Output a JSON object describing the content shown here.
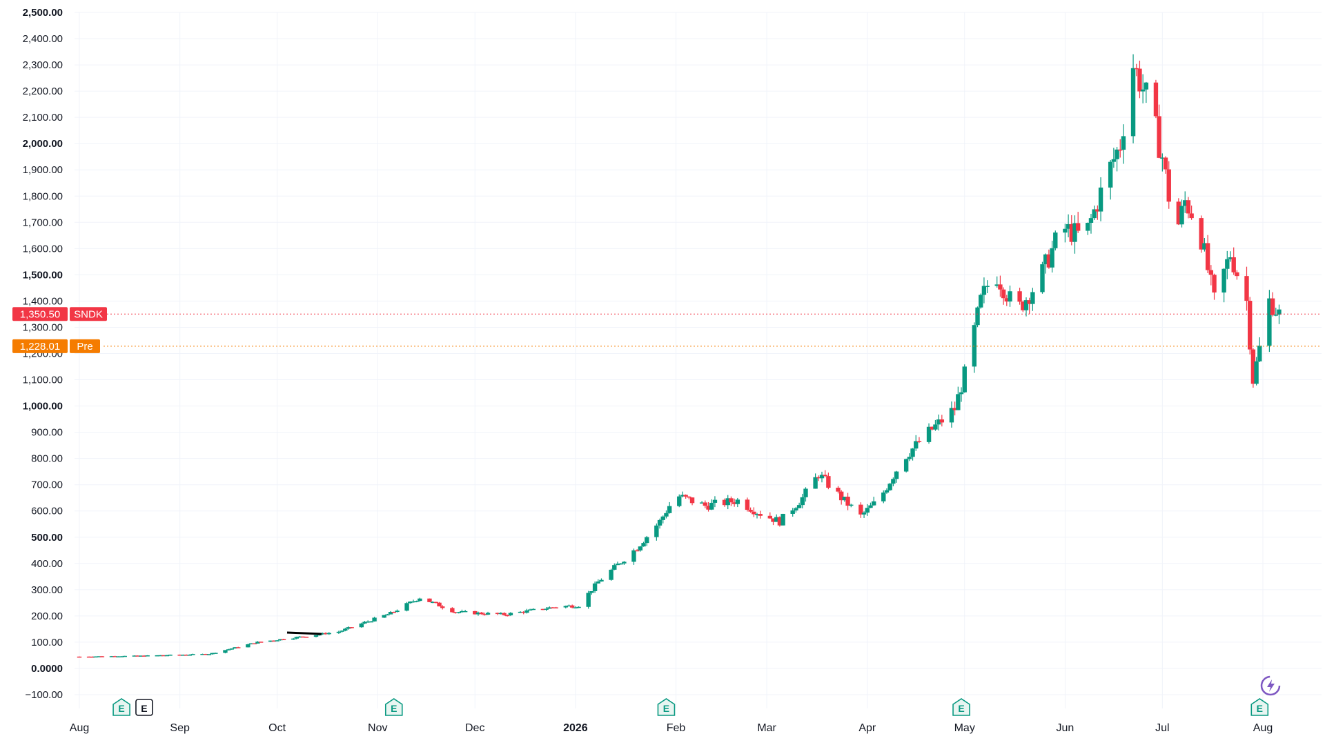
{
  "chart_data": {
    "type": "candlestick",
    "symbol": "SNDK",
    "ylim": [
      -100,
      2500
    ],
    "y_ticks": [
      "2,500.00",
      "2,400.00",
      "2,300.00",
      "2,200.00",
      "2,100.00",
      "2,000.00",
      "1,900.00",
      "1,800.00",
      "1,700.00",
      "1,600.00",
      "1,500.00",
      "1,400.00",
      "1,300.00",
      "1,200.00",
      "1,100.00",
      "1,000.00",
      "900.00",
      "800.00",
      "700.00",
      "600.00",
      "500.00",
      "400.00",
      "300.00",
      "200.00",
      "100.00",
      "0.0000",
      "−100.00"
    ],
    "y_tick_values": [
      2500,
      2400,
      2300,
      2200,
      2100,
      2000,
      1900,
      1800,
      1700,
      1600,
      1500,
      1400,
      1300,
      1200,
      1100,
      1000,
      900,
      800,
      700,
      600,
      500,
      400,
      300,
      200,
      100,
      0,
      -100
    ],
    "y_bold_values": [
      2500,
      2000,
      1500,
      1000,
      500,
      0
    ],
    "x_ticks": [
      "Aug",
      "Sep",
      "Oct",
      "Nov",
      "Dec",
      "2026",
      "Feb",
      "Mar",
      "Apr",
      "May",
      "Jun",
      "Jul",
      "Aug"
    ],
    "x_tick_dates": [
      "2025-08-01",
      "2025-09-01",
      "2025-10-01",
      "2025-11-01",
      "2025-12-01",
      "2026-01-01",
      "2026-02-01",
      "2026-03-01",
      "2026-04-01",
      "2026-05-01",
      "2026-06-01",
      "2026-07-01",
      "2026-08-01"
    ],
    "x_bold": [
      "2026"
    ],
    "price_tags": [
      {
        "value": 1350.5,
        "label": "1,350.50",
        "name": "SNDK",
        "color": "#f23645"
      },
      {
        "value": 1228.01,
        "label": "1,228.01",
        "name": "Pre",
        "color": "#f57c00"
      }
    ],
    "earnings_markers": [
      {
        "date": "2025-08-14",
        "label": "E",
        "style": "green"
      },
      {
        "date": "2025-08-21",
        "label": "E",
        "style": "dark"
      },
      {
        "date": "2025-11-06",
        "label": "E",
        "style": "green"
      },
      {
        "date": "2026-01-29",
        "label": "E",
        "style": "green"
      },
      {
        "date": "2026-04-30",
        "label": "E",
        "style": "green"
      },
      {
        "date": "2026-07-31",
        "label": "E",
        "style": "green"
      }
    ],
    "anchors": [
      [
        "2025-08-01",
        45
      ],
      [
        "2025-08-20",
        48
      ],
      [
        "2025-09-10",
        55
      ],
      [
        "2025-09-25",
        100
      ],
      [
        "2025-10-08",
        120
      ],
      [
        "2025-10-20",
        140
      ],
      [
        "2025-11-05",
        210
      ],
      [
        "2025-11-14",
        270
      ],
      [
        "2025-11-25",
        215
      ],
      [
        "2025-12-10",
        205
      ],
      [
        "2025-12-26",
        235
      ],
      [
        "2026-01-02",
        240
      ],
      [
        "2026-01-08",
        330
      ],
      [
        "2026-01-20",
        460
      ],
      [
        "2026-01-27",
        560
      ],
      [
        "2026-02-01",
        660
      ],
      [
        "2026-02-10",
        620
      ],
      [
        "2026-02-20",
        640
      ],
      [
        "2026-02-27",
        590
      ],
      [
        "2026-03-05",
        560
      ],
      [
        "2026-03-12",
        650
      ],
      [
        "2026-03-17",
        740
      ],
      [
        "2026-03-24",
        650
      ],
      [
        "2026-03-30",
        580
      ],
      [
        "2026-04-05",
        650
      ],
      [
        "2026-04-12",
        800
      ],
      [
        "2026-04-20",
        900
      ],
      [
        "2026-04-28",
        990
      ],
      [
        "2026-05-01",
        1120
      ],
      [
        "2026-05-06",
        1400
      ],
      [
        "2026-05-10",
        1520
      ],
      [
        "2026-05-17",
        1360
      ],
      [
        "2026-05-24",
        1480
      ],
      [
        "2026-05-31",
        1680
      ],
      [
        "2026-06-07",
        1640
      ],
      [
        "2026-06-14",
        1880
      ],
      [
        "2026-06-18",
        2000
      ],
      [
        "2026-06-22",
        2300
      ],
      [
        "2026-06-27",
        2150
      ],
      [
        "2026-07-01",
        1950
      ],
      [
        "2026-07-05",
        1650
      ],
      [
        "2026-07-08",
        1780
      ],
      [
        "2026-07-12",
        1700
      ],
      [
        "2026-07-17",
        1400
      ],
      [
        "2026-07-22",
        1580
      ],
      [
        "2026-07-27",
        1400
      ],
      [
        "2026-07-29",
        1100
      ],
      [
        "2026-08-03",
        1400
      ],
      [
        "2026-08-06",
        1350
      ]
    ],
    "colors": {
      "up": "#089981",
      "down": "#f23645"
    }
  }
}
